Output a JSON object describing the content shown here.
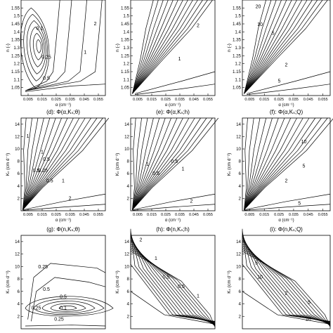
{
  "chart_data": [
    {
      "type": "contour",
      "title": "",
      "xlabel": "α (cm⁻¹)",
      "ylabel": "n (-)",
      "xlim": [
        0.0,
        0.06
      ],
      "ylim": [
        1.0,
        1.6
      ],
      "xticks": [
        "0.005",
        "0.015",
        "0.025",
        "0.035",
        "0.045",
        "0.055"
      ],
      "yticks": [
        "1.05",
        "1.1",
        "1.15",
        "1.2",
        "1.25",
        "1.3",
        "1.35",
        "1.4",
        "1.45",
        "1.5",
        "1.55"
      ],
      "contour_labels": [
        "0.1",
        "0.25",
        "0.5",
        "1",
        "2"
      ]
    },
    {
      "type": "contour",
      "title": "",
      "xlabel": "α (cm⁻¹)",
      "ylabel": "n (-)",
      "xlim": [
        0.0,
        0.06
      ],
      "ylim": [
        1.0,
        1.6
      ],
      "xticks": [
        "0.005",
        "0.015",
        "0.025",
        "0.035",
        "0.045",
        "0.055"
      ],
      "yticks": [
        "1.05",
        "1.1",
        "1.15",
        "1.2",
        "1.25",
        "1.3",
        "1.35",
        "1.4",
        "1.45",
        "1.5",
        "1.55"
      ],
      "contour_labels": [
        "1",
        "2"
      ]
    },
    {
      "type": "contour",
      "title": "",
      "xlabel": "α (cm⁻¹)",
      "ylabel": "n (-)",
      "xlim": [
        0.0,
        0.06
      ],
      "ylim": [
        1.0,
        1.6
      ],
      "xticks": [
        "0.005",
        "0.015",
        "0.025",
        "0.035",
        "0.045",
        "0.055"
      ],
      "yticks": [
        "1.05",
        "1.1",
        "1.15",
        "1.2",
        "1.25",
        "1.3",
        "1.35",
        "1.4",
        "1.45",
        "1.5",
        "1.55"
      ],
      "contour_labels": [
        "20",
        "10",
        "5",
        "2",
        "5"
      ]
    },
    {
      "type": "contour",
      "title": "(d): Φ(α,Kₛ;θ)",
      "xlabel": "α (cm⁻¹)",
      "ylabel": "Kₛ (cm d⁻¹)",
      "xlim": [
        0.0,
        0.06
      ],
      "ylim": [
        0,
        15
      ],
      "xticks": [
        "0.005",
        "0.015",
        "0.025",
        "0.035",
        "0.045",
        "0.055"
      ],
      "yticks": [
        "2",
        "4",
        "6",
        "8",
        "10",
        "12",
        "14"
      ],
      "contour_labels": [
        "1",
        "1",
        "0.5",
        "0.25",
        "0.5",
        "0.5",
        "1",
        "2"
      ]
    },
    {
      "type": "contour",
      "title": "(e): Φ(α,Kₛ;h)",
      "xlabel": "α (cm⁻¹)",
      "ylabel": "Kₛ (cm d⁻¹)",
      "xlim": [
        0.0,
        0.06
      ],
      "ylim": [
        0,
        15
      ],
      "xticks": [
        "0.005",
        "0.015",
        "0.025",
        "0.035",
        "0.045",
        "0.055"
      ],
      "yticks": [
        "2",
        "4",
        "6",
        "8",
        "10",
        "12",
        "14"
      ],
      "contour_labels": [
        "1",
        "0.5",
        "0.5",
        "1",
        "2"
      ]
    },
    {
      "type": "contour",
      "title": "(f): Φ(α,Kₛ;Q)",
      "xlabel": "α (cm⁻¹)",
      "ylabel": "Kₛ (cm d⁻¹)",
      "xlim": [
        0.0,
        0.06
      ],
      "ylim": [
        0,
        15
      ],
      "xticks": [
        "0.005",
        "0.015",
        "0.025",
        "0.035",
        "0.045",
        "0.055"
      ],
      "yticks": [
        "2",
        "4",
        "6",
        "8",
        "10",
        "12",
        "14"
      ],
      "contour_labels": [
        "10",
        "5",
        "2",
        "5"
      ]
    },
    {
      "type": "contour",
      "title": "(g): Φ(n,Kₛ;θ)",
      "xlabel": "",
      "ylabel": "Kₛ (cm d⁻¹)",
      "xlim": [
        1.0,
        1.6
      ],
      "ylim": [
        0,
        15
      ],
      "xticks": [],
      "yticks": [
        "2",
        "4",
        "6",
        "8",
        "10",
        "12",
        "14"
      ],
      "contour_labels": [
        "0.25",
        "0.5",
        "0.25",
        "0.1",
        "0.25",
        "0.5"
      ]
    },
    {
      "type": "contour",
      "title": "(h): Φ(n,Kₛ;h)",
      "xlabel": "",
      "ylabel": "Kₛ (cm d⁻¹)",
      "xlim": [
        1.0,
        1.6
      ],
      "ylim": [
        0,
        15
      ],
      "xticks": [],
      "yticks": [
        "2",
        "4",
        "6",
        "8",
        "10",
        "12",
        "14"
      ],
      "contour_labels": [
        "2",
        "1",
        "0.5",
        "0.5",
        "1"
      ]
    },
    {
      "type": "contour",
      "title": "(i): Φ(n,Kₛ;Q)",
      "xlabel": "",
      "ylabel": "Kₛ (cm d⁻¹)",
      "xlim": [
        1.0,
        1.6
      ],
      "ylim": [
        0,
        15
      ],
      "xticks": [],
      "yticks": [
        "2",
        "4",
        "6",
        "8",
        "10",
        "12",
        "14"
      ],
      "contour_labels": [
        "5",
        "10",
        "2",
        "5",
        "10"
      ]
    }
  ]
}
